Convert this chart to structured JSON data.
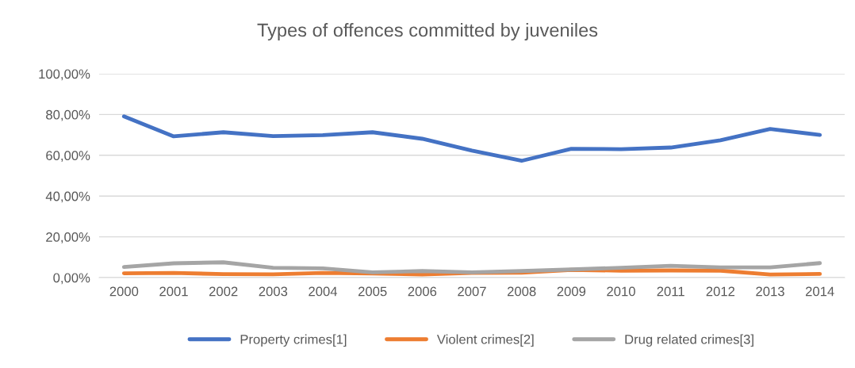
{
  "chart_data": {
    "type": "line",
    "title": "Types of offences committed by juveniles",
    "categories": [
      "2000",
      "2001",
      "2002",
      "2003",
      "2004",
      "2005",
      "2006",
      "2007",
      "2008",
      "2009",
      "2010",
      "2011",
      "2012",
      "2013",
      "2014"
    ],
    "series": [
      {
        "name": "Property crimes[1]",
        "color": "#4472c4",
        "values": [
          79.1,
          69.3,
          71.3,
          69.4,
          69.9,
          71.3,
          68.1,
          62.3,
          57.3,
          63.2,
          63.0,
          63.8,
          67.4,
          72.9,
          70.0
        ]
      },
      {
        "name": "Violent crimes[2]",
        "color": "#ed7d31",
        "values": [
          2.1,
          2.3,
          1.7,
          1.6,
          2.3,
          2.0,
          1.5,
          2.3,
          2.4,
          3.8,
          3.4,
          3.5,
          3.4,
          1.5,
          1.8
        ]
      },
      {
        "name": "Drug related crimes[3]",
        "color": "#a5a5a5",
        "values": [
          5.2,
          7.0,
          7.5,
          4.8,
          4.5,
          2.6,
          3.2,
          2.6,
          3.2,
          4.0,
          4.8,
          5.8,
          5.0,
          5.0,
          7.1
        ]
      }
    ],
    "ylim": [
      0,
      100
    ],
    "yticks": [
      {
        "value": 0,
        "label": "0,00%"
      },
      {
        "value": 20,
        "label": "20,00%"
      },
      {
        "value": 40,
        "label": "40,00%"
      },
      {
        "value": 60,
        "label": "60,00%"
      },
      {
        "value": 80,
        "label": "80,00%"
      },
      {
        "value": 100,
        "label": "100,00%"
      }
    ],
    "grid": "y",
    "legend": "bottom",
    "marker": "none",
    "line_style": "solid"
  }
}
